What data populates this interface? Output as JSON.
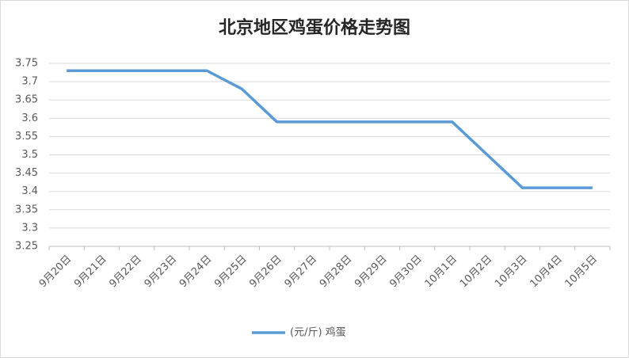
{
  "chart_data": {
    "type": "line",
    "title": "北京地区鸡蛋价格走势图",
    "categories": [
      "9月20日",
      "9月21日",
      "9月22日",
      "9月23日",
      "9月24日",
      "9月25日",
      "9月26日",
      "9月27日",
      "9月28日",
      "9月29日",
      "9月30日",
      "10月1日",
      "10月2日",
      "10月3日",
      "10月4日",
      "10月5日"
    ],
    "series": [
      {
        "name": "(元/斤) 鸡蛋",
        "color": "#5b9bd5",
        "values": [
          3.73,
          3.73,
          3.73,
          3.73,
          3.73,
          3.68,
          3.59,
          3.59,
          3.59,
          3.59,
          3.59,
          3.59,
          3.5,
          3.41,
          3.41,
          3.41
        ]
      }
    ],
    "ylim": [
      3.25,
      3.75
    ],
    "yticks": [
      3.25,
      3.3,
      3.35,
      3.4,
      3.45,
      3.5,
      3.55,
      3.6,
      3.65,
      3.7,
      3.75
    ],
    "grid": true,
    "legend": "bottom"
  }
}
